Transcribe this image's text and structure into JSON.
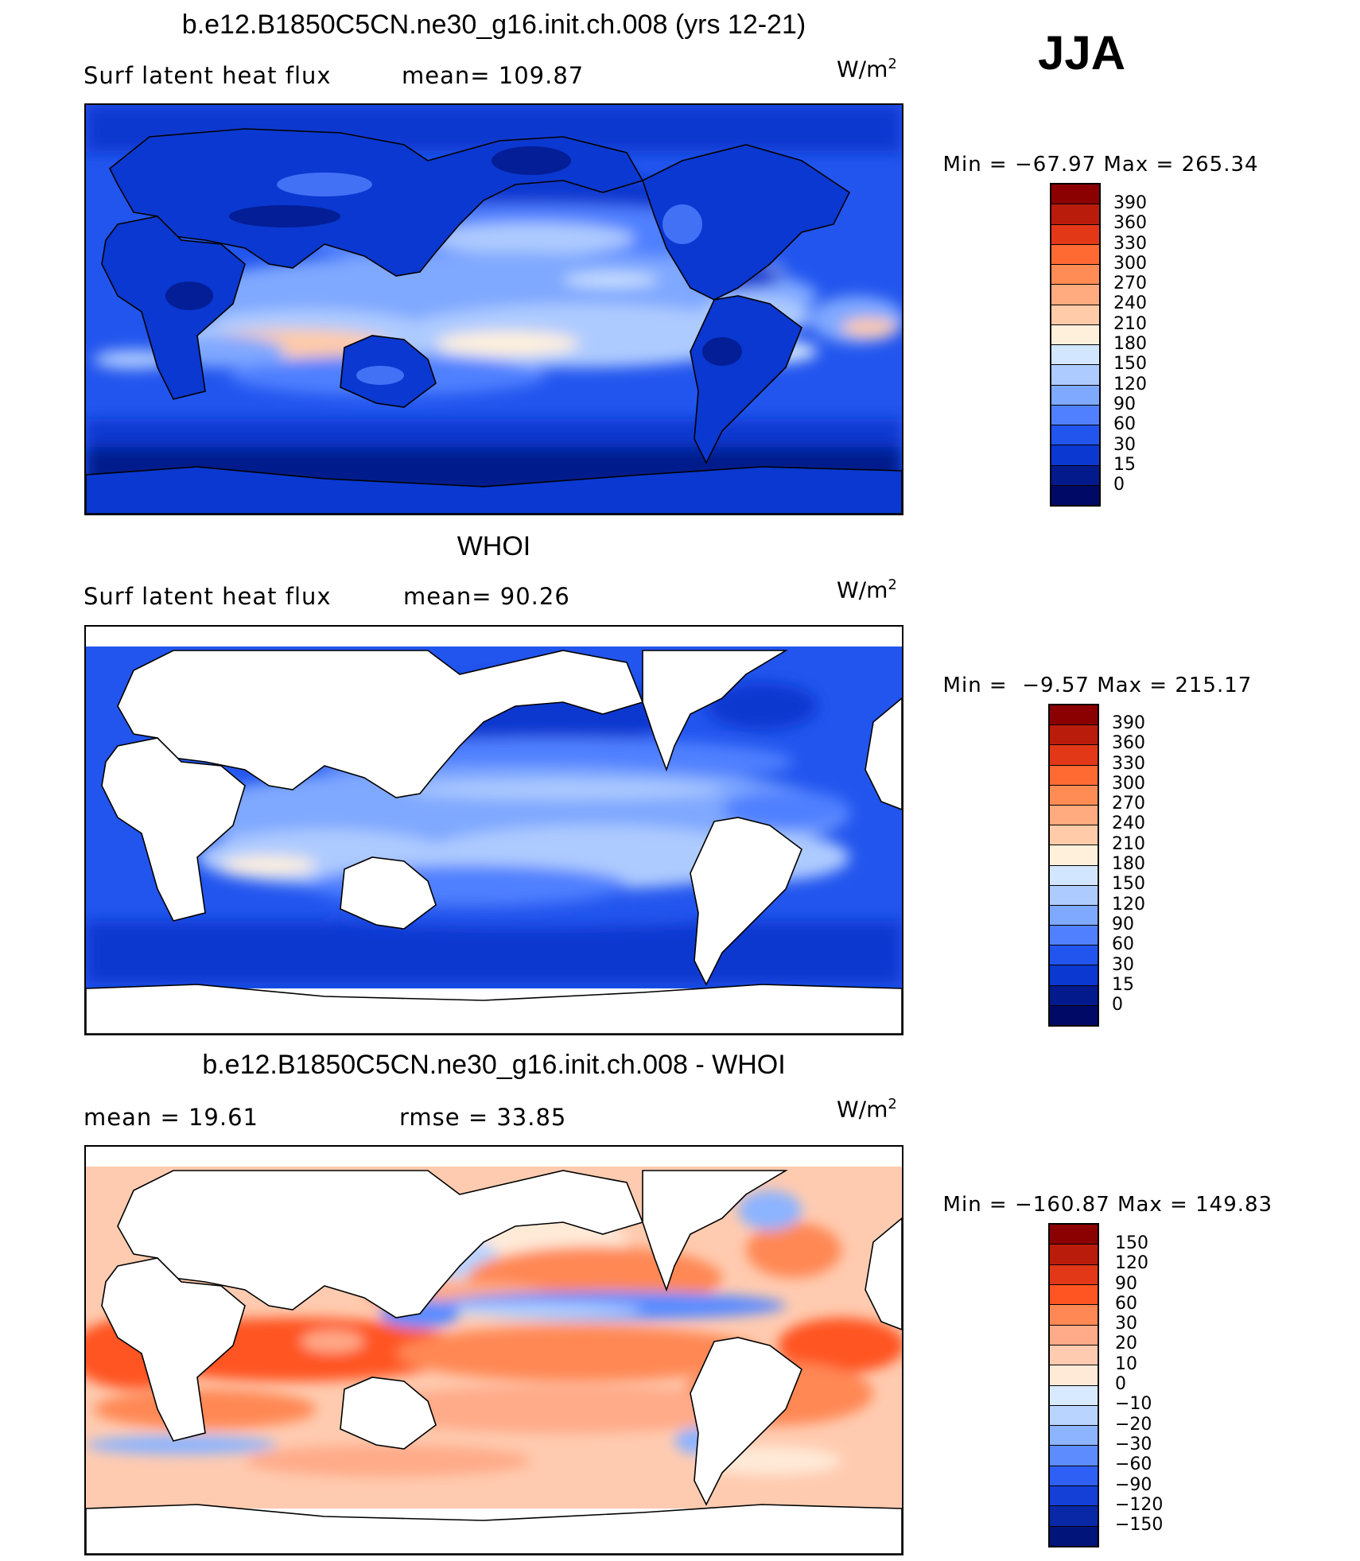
{
  "season": "JJA",
  "panels": [
    {
      "title": "b.e12.B1850C5CN.ne30_g16.init.ch.008 (yrs 12-21)",
      "left_label": "Surf  latent  heat  flux",
      "mid_label": "mean=  109.87",
      "units": "W/m",
      "units_exp": "2",
      "min_label": "Min",
      "min_value": "−67.97",
      "max_label": "Max",
      "max_value": "265.34",
      "colorbar_levels": [
        "390",
        "360",
        "330",
        "300",
        "270",
        "240",
        "210",
        "180",
        "150",
        "120",
        "90",
        "60",
        "30",
        "15",
        "0"
      ],
      "colorbar_colors": [
        "#8B0000",
        "#BA1C0C",
        "#E23818",
        "#FF6A33",
        "#FF8C55",
        "#FFAA7F",
        "#FFCBA8",
        "#FFF0DC",
        "#D2E6FF",
        "#AECBFF",
        "#7FA8FF",
        "#5080FF",
        "#2255EE",
        "#0A38D0",
        "#021A8C",
        "#000A66"
      ]
    },
    {
      "title": "WHOI",
      "left_label": "Surf  latent  heat  flux",
      "mid_label": "mean=   90.26",
      "units": "W/m",
      "units_exp": "2",
      "min_label": "Min",
      "min_value": "−9.57",
      "max_label": "Max",
      "max_value": "215.17",
      "colorbar_levels": [
        "390",
        "360",
        "330",
        "300",
        "270",
        "240",
        "210",
        "180",
        "150",
        "120",
        "90",
        "60",
        "30",
        "15",
        "0"
      ],
      "colorbar_colors": [
        "#8B0000",
        "#BA1C0C",
        "#E23818",
        "#FF6A33",
        "#FF8C55",
        "#FFAA7F",
        "#FFCBA8",
        "#FFF0DC",
        "#D2E6FF",
        "#AECBFF",
        "#7FA8FF",
        "#5080FF",
        "#2255EE",
        "#0A38D0",
        "#021A8C",
        "#000A66"
      ]
    },
    {
      "title": "b.e12.B1850C5CN.ne30_g16.init.ch.008 - WHOI",
      "left_label": "mean  =    19.61",
      "mid_label": "rmse  =    33.85",
      "units": "W/m",
      "units_exp": "2",
      "min_label": "Min",
      "min_value": "−160.87",
      "max_label": "Max",
      "max_value": "149.83",
      "colorbar_levels": [
        "150",
        "120",
        "90",
        "60",
        "30",
        "20",
        "10",
        "0",
        "−10",
        "−20",
        "−30",
        "−60",
        "−90",
        "−120",
        "−150"
      ],
      "colorbar_colors": [
        "#8B0000",
        "#BA1C0C",
        "#E23818",
        "#FF5522",
        "#FF8855",
        "#FFAA88",
        "#FFCBB0",
        "#FFEAD8",
        "#D8EAFF",
        "#B8D4FF",
        "#8CB4FF",
        "#5C8CFF",
        "#2F60F5",
        "#1440D8",
        "#0828A8",
        "#00147A"
      ]
    }
  ]
}
